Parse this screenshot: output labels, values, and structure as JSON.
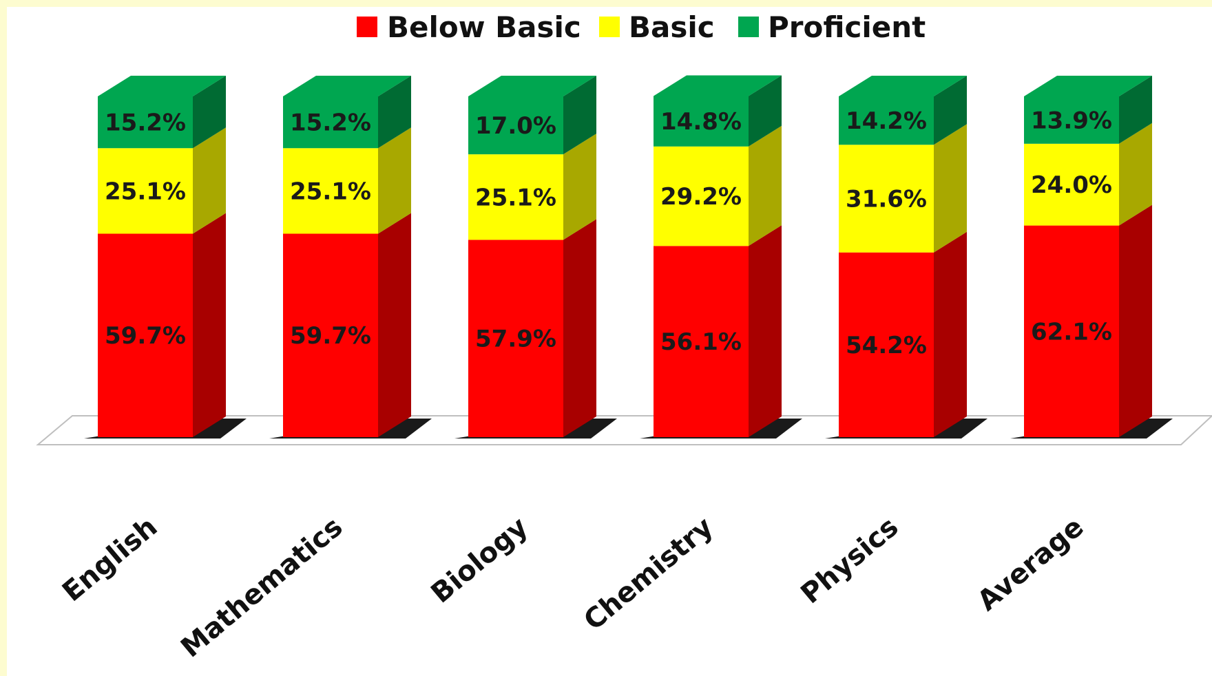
{
  "chart_data": {
    "type": "bar",
    "stacked": true,
    "three_d": true,
    "categories": [
      "English",
      "Mathematics",
      "Biology",
      "Chemistry",
      "Physics",
      "Average"
    ],
    "series": [
      {
        "name": "Below Basic",
        "color": "#ff0000",
        "side_color": "#a80000",
        "values": [
          59.7,
          59.7,
          57.9,
          56.1,
          54.2,
          62.1
        ],
        "labels": [
          "59.7%",
          "59.7%",
          "57.9%",
          "56.1%",
          "54.2%",
          "62.1%"
        ]
      },
      {
        "name": "Basic",
        "color": "#ffff00",
        "side_color": "#a8a800",
        "values": [
          25.1,
          25.1,
          25.1,
          29.2,
          31.6,
          24.0
        ],
        "labels": [
          "25.1%",
          "25.1%",
          "25.1%",
          "29.2%",
          "31.6%",
          "24.0%"
        ]
      },
      {
        "name": "Proficient",
        "color": "#00a650",
        "side_color": "#006b33",
        "values": [
          15.2,
          15.2,
          17.0,
          14.8,
          14.2,
          13.9
        ],
        "labels": [
          "15.2%",
          "15.2%",
          "17.0%",
          "14.8%",
          "14.2%",
          "13.9%"
        ]
      }
    ],
    "ylim": [
      0,
      100
    ],
    "legend": "top",
    "grid": false,
    "xlabel": "",
    "ylabel": ""
  }
}
